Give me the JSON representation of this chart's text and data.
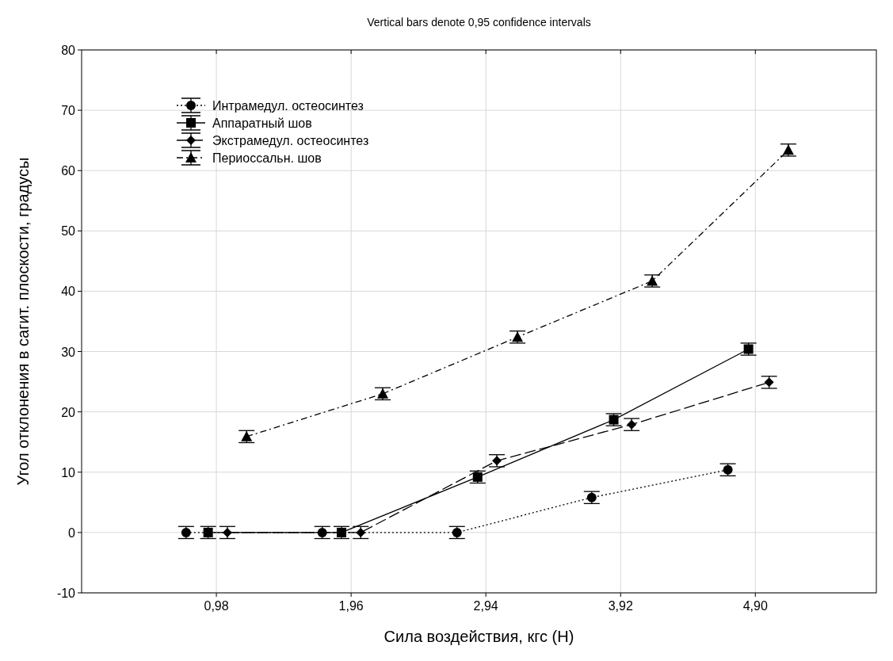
{
  "chart_data": {
    "type": "line",
    "title": "Vertical bars denote 0,95 confidence intervals",
    "xlabel": "Сила воздействия, кгс (Н)",
    "ylabel": "Угол отклонения в сагит. плоскости, градусы",
    "xlim": [
      0,
      5.78
    ],
    "xticks": [
      {
        "value": 0.98,
        "label": "0,98"
      },
      {
        "value": 1.96,
        "label": "1,96"
      },
      {
        "value": 2.94,
        "label": "2,94"
      },
      {
        "value": 3.92,
        "label": "3,92"
      },
      {
        "value": 4.9,
        "label": "4,90"
      }
    ],
    "ylim": [
      -10,
      80
    ],
    "yticks": [
      -10,
      0,
      10,
      20,
      30,
      40,
      50,
      60,
      70,
      80
    ],
    "grid": true,
    "legend": "top left",
    "series": [
      {
        "name": "Интрамедул. остеосинтез",
        "color": "#000000",
        "marker": "circle",
        "line_style": "dotted",
        "x": [
          0.76,
          1.75,
          2.73,
          3.71,
          4.7
        ],
        "values": [
          0,
          0,
          0,
          5.8,
          10.4
        ],
        "errors": [
          1,
          1,
          1,
          1,
          1
        ]
      },
      {
        "name": "Аппаратный шов",
        "color": "#000000",
        "marker": "square",
        "line_style": "solid",
        "x": [
          0.92,
          1.89,
          2.88,
          3.87,
          4.85
        ],
        "values": [
          0,
          0,
          9.2,
          18.7,
          30.4
        ],
        "errors": [
          1,
          1,
          1,
          1,
          1
        ]
      },
      {
        "name": "Экстрамедул. остеосинтез",
        "color": "#000000",
        "marker": "diamond",
        "line_style": "dashed",
        "x": [
          1.06,
          2.03,
          3.02,
          4.0,
          5.0
        ],
        "values": [
          0,
          0,
          11.9,
          17.9,
          24.9
        ],
        "errors": [
          1,
          1,
          1,
          1,
          1
        ]
      },
      {
        "name": "Периоссальн. шов",
        "color": "#000000",
        "marker": "triangle",
        "line_style": "dashdot",
        "x": [
          1.2,
          2.19,
          3.17,
          4.15,
          5.14
        ],
        "values": [
          15.9,
          23,
          32.4,
          41.7,
          63.4
        ],
        "errors": [
          1,
          1,
          1,
          1,
          1
        ]
      }
    ]
  }
}
